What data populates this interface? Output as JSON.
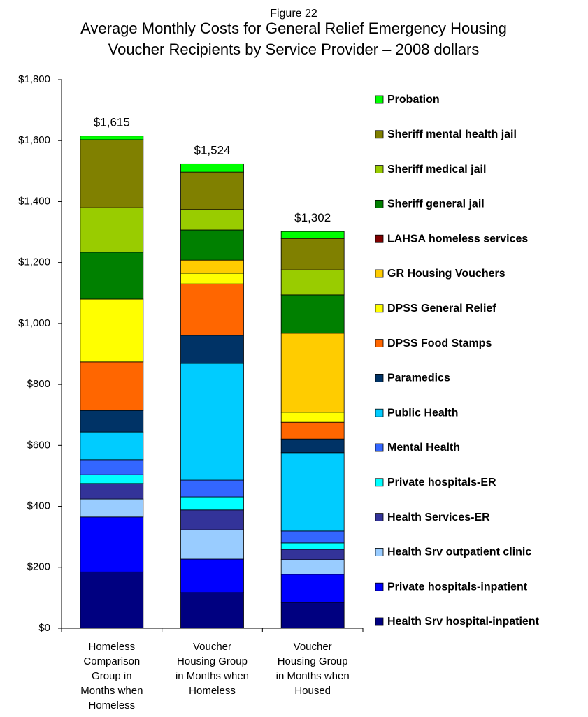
{
  "chart_data": {
    "type": "stacked_bar",
    "figure_label": "Figure 22",
    "title": "Average Monthly Costs for General Relief Emergency Housing\nVoucher Recipients by Service Provider – 2008 dollars",
    "categories": [
      "Homeless\nComparison\nGroup in\nMonths when\nHomeless",
      "Voucher\nHousing Group\nin Months when\nHomeless",
      "Voucher\nHousing Group\nin Months when\nHoused"
    ],
    "series": [
      {
        "name": "Health Srv hospital-inpatient",
        "color": "#000080",
        "values": [
          185,
          117,
          85
        ]
      },
      {
        "name": "Private hospitals-inpatient",
        "color": "#0000FF",
        "values": [
          180,
          110,
          92
        ]
      },
      {
        "name": "Health Srv outpatient clinic",
        "color": "#99CCFF",
        "values": [
          59,
          96,
          48
        ]
      },
      {
        "name": "Health Services-ER",
        "color": "#333399",
        "values": [
          51,
          65,
          34
        ]
      },
      {
        "name": "Private hospitals-ER",
        "color": "#00FFFF",
        "values": [
          29,
          43,
          21
        ]
      },
      {
        "name": "Mental Health",
        "color": "#3366FF",
        "values": [
          49,
          55,
          39
        ]
      },
      {
        "name": "Public Health",
        "color": "#00CCFF",
        "values": [
          91,
          383,
          257
        ]
      },
      {
        "name": "Paramedics",
        "color": "#003366",
        "values": [
          71,
          92,
          45
        ]
      },
      {
        "name": "DPSS Food Stamps",
        "color": "#FF6600",
        "values": [
          159,
          169,
          55
        ]
      },
      {
        "name": "DPSS General Relief",
        "color": "#FFFF00",
        "values": [
          206,
          35,
          33
        ]
      },
      {
        "name": "GR Housing Vouchers",
        "color": "#FFCC00",
        "values": [
          0,
          43,
          259
        ]
      },
      {
        "name": "LAHSA homeless services",
        "color": "#800000",
        "values": [
          0,
          0,
          0
        ]
      },
      {
        "name": "Sheriff general jail",
        "color": "#008000",
        "values": [
          154,
          99,
          126
        ]
      },
      {
        "name": "Sheriff medical jail",
        "color": "#99CC00",
        "values": [
          146,
          67,
          82
        ]
      },
      {
        "name": "Sheriff mental health jail",
        "color": "#808000",
        "values": [
          223,
          123,
          103
        ]
      },
      {
        "name": "Probation",
        "color": "#00FF00",
        "values": [
          12,
          27,
          23
        ]
      }
    ],
    "totals": [
      1615,
      1524,
      1302
    ],
    "total_labels": [
      "$1,615",
      "$1,524",
      "$1,302"
    ],
    "ylim": [
      0,
      1800
    ],
    "yticks": [
      {
        "value": 0,
        "label": "$0"
      },
      {
        "value": 200,
        "label": "$200"
      },
      {
        "value": 400,
        "label": "$400"
      },
      {
        "value": 600,
        "label": "$600"
      },
      {
        "value": 800,
        "label": "$800"
      },
      {
        "value": 1000,
        "label": "$1,000"
      },
      {
        "value": 1200,
        "label": "$1,200"
      },
      {
        "value": 1400,
        "label": "$1,400"
      },
      {
        "value": 1600,
        "label": "$1,600"
      },
      {
        "value": 1800,
        "label": "$1,800"
      }
    ],
    "legend": "right"
  }
}
